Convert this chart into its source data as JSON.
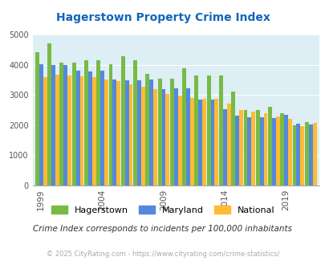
{
  "title": "Hagerstown Property Crime Index",
  "subtitle": "Crime Index corresponds to incidents per 100,000 inhabitants",
  "footer": "© 2025 CityRating.com - https://www.cityrating.com/crime-statistics/",
  "years": [
    1999,
    2000,
    2001,
    2002,
    2003,
    2004,
    2005,
    2006,
    2007,
    2008,
    2009,
    2010,
    2011,
    2012,
    2013,
    2014,
    2015,
    2016,
    2017,
    2018,
    2019,
    2020,
    2021
  ],
  "hagerstown": [
    4420,
    4700,
    4080,
    4060,
    4160,
    4160,
    4020,
    4280,
    4140,
    3700,
    3540,
    3530,
    3870,
    3650,
    3650,
    3630,
    3100,
    2500,
    2490,
    2600,
    2380,
    2000,
    2100
  ],
  "maryland": [
    4020,
    4000,
    4000,
    3800,
    3780,
    3800,
    3500,
    3490,
    3480,
    3520,
    3200,
    3210,
    3220,
    2850,
    2840,
    2530,
    2310,
    2270,
    2260,
    2230,
    2340,
    2040,
    2020
  ],
  "national": [
    3590,
    3660,
    3630,
    3620,
    3600,
    3520,
    3450,
    3350,
    3270,
    3200,
    3040,
    2990,
    2910,
    2870,
    2880,
    2700,
    2490,
    2450,
    2380,
    2280,
    2200,
    1960,
    2080
  ],
  "hagerstown_color": "#77bb44",
  "maryland_color": "#5588dd",
  "national_color": "#ffbb33",
  "bg_color": "#ddeef4",
  "title_color": "#1166bb",
  "subtitle_color": "#333333",
  "footer_color": "#aaaaaa",
  "ylim": [
    0,
    5000
  ],
  "yticks": [
    0,
    1000,
    2000,
    3000,
    4000,
    5000
  ],
  "tick_years": [
    1999,
    2004,
    2009,
    2014,
    2019
  ]
}
